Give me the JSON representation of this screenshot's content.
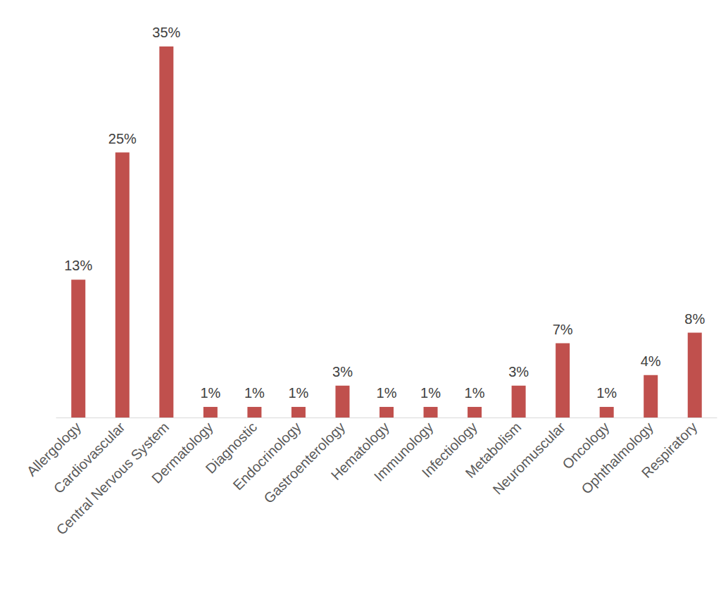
{
  "chart_data": {
    "type": "bar",
    "categories": [
      "Allergology",
      "Cardiovascular",
      "Central Nervous System",
      "Dermatology",
      "Diagnostic",
      "Endocrinology",
      "Gastroenterology",
      "Hematology",
      "Immunology",
      "Infectiology",
      "Metabolism",
      "Neuromuscular",
      "Oncology",
      "Ophthalmology",
      "Respiratory"
    ],
    "values": [
      13,
      25,
      35,
      1,
      1,
      1,
      3,
      1,
      1,
      1,
      3,
      7,
      1,
      4,
      8
    ],
    "value_labels": [
      "13%",
      "25%",
      "35%",
      "1%",
      "1%",
      "1%",
      "3%",
      "1%",
      "1%",
      "1%",
      "3%",
      "7%",
      "1%",
      "4%",
      "8%"
    ],
    "color": "#c0504d",
    "ylim": [
      0,
      35
    ],
    "grid": false,
    "data_labels": true,
    "tick_labels": "x"
  }
}
